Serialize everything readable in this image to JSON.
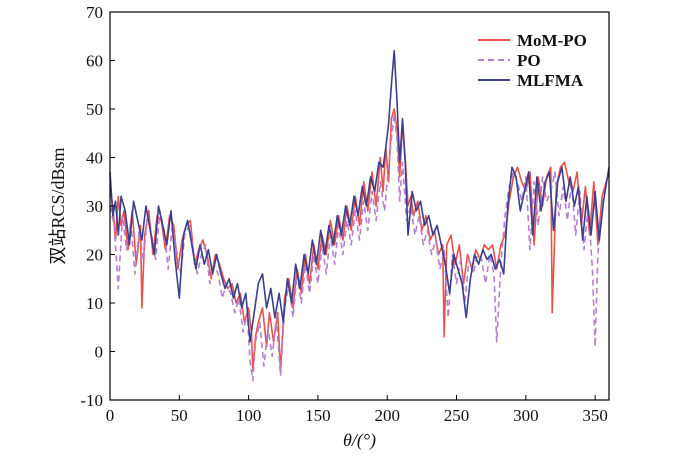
{
  "chart_data": {
    "type": "line",
    "xlabel": "θ/(°)",
    "ylabel": "双站RCS/dBsm",
    "xlim": [
      0,
      360
    ],
    "ylim": [
      -10,
      70
    ],
    "x_ticks": [
      0,
      50,
      100,
      150,
      200,
      250,
      300,
      350
    ],
    "y_ticks": [
      -10,
      0,
      10,
      20,
      30,
      40,
      50,
      60,
      70
    ],
    "grid": false,
    "legend_position": "top-right",
    "series": [
      {
        "name": "MoM-PO",
        "color": "#e8534a",
        "style": "solid",
        "x": [
          0,
          2,
          4,
          6,
          8,
          10,
          13,
          16,
          19,
          22,
          23,
          25,
          28,
          31,
          34,
          37,
          40,
          43,
          46,
          49,
          52,
          55,
          58,
          61,
          64,
          67,
          70,
          73,
          76,
          79,
          82,
          85,
          88,
          91,
          94,
          97,
          100,
          102,
          103,
          105,
          107,
          110,
          113,
          115,
          118,
          121,
          123,
          126,
          129,
          132,
          135,
          138,
          141,
          144,
          147,
          150,
          153,
          156,
          159,
          162,
          165,
          168,
          171,
          174,
          177,
          180,
          183,
          186,
          189,
          192,
          195,
          197,
          199,
          201,
          203,
          205,
          207,
          209,
          211,
          213,
          215,
          217,
          219,
          222,
          225,
          228,
          231,
          234,
          237,
          240,
          241,
          243,
          246,
          249,
          252,
          255,
          258,
          261,
          264,
          267,
          270,
          273,
          276,
          279,
          282,
          285,
          288,
          291,
          294,
          297,
          300,
          303,
          306,
          309,
          312,
          315,
          318,
          319,
          322,
          325,
          328,
          331,
          334,
          337,
          340,
          343,
          346,
          349,
          352,
          355,
          358,
          360
        ],
        "values": [
          34,
          30,
          23,
          32,
          26,
          29,
          21,
          29,
          18,
          26,
          9,
          24,
          29,
          20,
          28,
          27,
          21,
          28,
          26,
          17,
          23,
          26,
          27,
          18,
          21,
          23,
          20,
          15,
          20,
          18,
          15,
          13,
          14,
          10,
          12,
          6,
          9,
          4,
          -4,
          3,
          6,
          9,
          1,
          8,
          2,
          8,
          -4,
          11,
          15,
          9,
          17,
          12,
          20,
          14,
          22,
          17,
          24,
          20,
          27,
          22,
          28,
          23,
          30,
          25,
          32,
          26,
          35,
          29,
          37,
          30,
          40,
          33,
          42,
          35,
          48,
          50,
          46,
          36,
          47,
          40,
          30,
          32,
          28,
          31,
          25,
          28,
          23,
          25,
          20,
          22,
          3,
          22,
          24,
          18,
          22,
          14,
          20,
          17,
          21,
          19,
          22,
          21,
          22,
          17,
          22,
          24,
          31,
          36,
          38,
          35,
          33,
          37,
          22,
          36,
          30,
          36,
          38,
          8,
          34,
          38,
          39,
          35,
          33,
          37,
          26,
          34,
          24,
          35,
          22,
          32,
          35,
          37
        ]
      },
      {
        "name": "PO",
        "color": "#b77fd0",
        "style": "dashed",
        "x": [
          0,
          3,
          6,
          9,
          12,
          15,
          18,
          21,
          24,
          27,
          30,
          33,
          36,
          39,
          42,
          45,
          48,
          51,
          54,
          57,
          60,
          63,
          66,
          69,
          72,
          75,
          78,
          81,
          84,
          87,
          90,
          93,
          96,
          99,
          101,
          103,
          105,
          108,
          111,
          114,
          117,
          120,
          123,
          126,
          129,
          132,
          135,
          138,
          141,
          144,
          147,
          150,
          153,
          156,
          159,
          162,
          165,
          168,
          171,
          174,
          177,
          180,
          183,
          186,
          189,
          192,
          195,
          198,
          201,
          203,
          205,
          207,
          209,
          211,
          214,
          217,
          220,
          223,
          226,
          229,
          232,
          235,
          238,
          241,
          244,
          247,
          250,
          253,
          256,
          259,
          262,
          265,
          268,
          271,
          274,
          277,
          279,
          282,
          285,
          288,
          291,
          294,
          297,
          300,
          303,
          306,
          309,
          312,
          315,
          318,
          321,
          324,
          327,
          330,
          333,
          336,
          339,
          342,
          345,
          348,
          350,
          352,
          355,
          358,
          360
        ],
        "values": [
          30,
          26,
          13,
          28,
          21,
          27,
          16,
          25,
          19,
          28,
          24,
          19,
          29,
          25,
          17,
          26,
          21,
          16,
          24,
          26,
          21,
          16,
          20,
          22,
          14,
          18,
          16,
          11,
          14,
          12,
          8,
          11,
          4,
          8,
          -2,
          -6,
          2,
          6,
          -3,
          5,
          -1,
          7,
          -5,
          9,
          14,
          7,
          16,
          10,
          18,
          12,
          20,
          14,
          22,
          16,
          24,
          18,
          26,
          20,
          27,
          22,
          29,
          23,
          31,
          25,
          33,
          27,
          35,
          29,
          38,
          44,
          49,
          44,
          31,
          39,
          27,
          30,
          24,
          28,
          22,
          25,
          20,
          23,
          17,
          21,
          7,
          20,
          14,
          19,
          10,
          19,
          16,
          20,
          19,
          14,
          20,
          16,
          2,
          18,
          28,
          34,
          37,
          35,
          31,
          36,
          21,
          35,
          26,
          36,
          31,
          33,
          37,
          28,
          34,
          27,
          35,
          24,
          33,
          21,
          30,
          17,
          1,
          20,
          29,
          35,
          37
        ]
      },
      {
        "name": "MLFMA",
        "color": "#3b3f8c",
        "style": "solid",
        "x": [
          0,
          2,
          4,
          6,
          8,
          11,
          14,
          17,
          20,
          23,
          26,
          29,
          32,
          35,
          38,
          41,
          44,
          47,
          50,
          53,
          56,
          59,
          62,
          65,
          68,
          71,
          74,
          77,
          80,
          83,
          86,
          89,
          92,
          95,
          98,
          101,
          104,
          107,
          110,
          113,
          116,
          119,
          122,
          125,
          128,
          131,
          134,
          137,
          140,
          143,
          146,
          149,
          152,
          155,
          158,
          161,
          164,
          167,
          170,
          173,
          176,
          179,
          182,
          185,
          188,
          191,
          194,
          197,
          199,
          201,
          203,
          205,
          207,
          209,
          211,
          213,
          215,
          218,
          221,
          224,
          227,
          230,
          233,
          236,
          239,
          242,
          245,
          248,
          251,
          254,
          257,
          260,
          263,
          266,
          269,
          272,
          275,
          278,
          281,
          284,
          287,
          290,
          293,
          296,
          299,
          302,
          305,
          308,
          311,
          314,
          317,
          320,
          323,
          326,
          329,
          332,
          335,
          338,
          341,
          344,
          347,
          350,
          353,
          356,
          360
        ],
        "values": [
          37,
          28,
          31,
          24,
          32,
          29,
          22,
          31,
          27,
          23,
          30,
          25,
          20,
          30,
          26,
          22,
          29,
          19,
          11,
          24,
          27,
          22,
          17,
          22,
          18,
          21,
          16,
          20,
          16,
          13,
          15,
          11,
          14,
          9,
          12,
          2,
          8,
          14,
          16,
          9,
          13,
          7,
          12,
          6,
          15,
          10,
          18,
          13,
          20,
          16,
          23,
          18,
          25,
          20,
          26,
          22,
          28,
          24,
          30,
          26,
          32,
          28,
          34,
          30,
          36,
          33,
          39,
          38,
          42,
          47,
          55,
          62,
          52,
          39,
          48,
          39,
          24,
          33,
          29,
          31,
          26,
          28,
          24,
          26,
          22,
          18,
          12,
          20,
          17,
          14,
          7,
          15,
          20,
          18,
          21,
          19,
          20,
          17,
          19,
          16,
          30,
          38,
          36,
          29,
          33,
          37,
          24,
          36,
          29,
          35,
          37,
          25,
          35,
          38,
          31,
          36,
          30,
          34,
          23,
          32,
          24,
          33,
          23,
          31,
          38
        ]
      }
    ]
  }
}
